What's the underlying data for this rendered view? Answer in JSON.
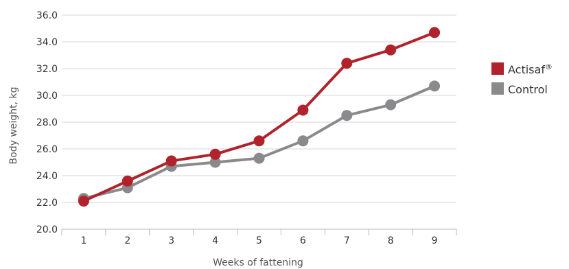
{
  "chart_data": {
    "type": "line",
    "title": "",
    "xlabel": "Weeks of fattening",
    "ylabel": "Body weight, kg",
    "categories": [
      "1",
      "2",
      "3",
      "4",
      "5",
      "6",
      "7",
      "8",
      "9"
    ],
    "ylim": [
      20.0,
      36.0
    ],
    "yticks": [
      "20.0",
      "22.0",
      "24.0",
      "26.0",
      "28.0",
      "30.0",
      "32.0",
      "34.0",
      "36.0"
    ],
    "grid": "horizontal",
    "legend_position": "right",
    "series": [
      {
        "name": "Actisaf®",
        "color": "#b1232c",
        "values": [
          22.1,
          23.6,
          25.1,
          25.6,
          26.6,
          28.9,
          32.4,
          33.4,
          34.7
        ]
      },
      {
        "name": "Control",
        "color": "#8a8a8d",
        "values": [
          22.3,
          23.1,
          24.7,
          25.0,
          25.3,
          26.6,
          28.5,
          29.3,
          30.7
        ]
      }
    ]
  }
}
